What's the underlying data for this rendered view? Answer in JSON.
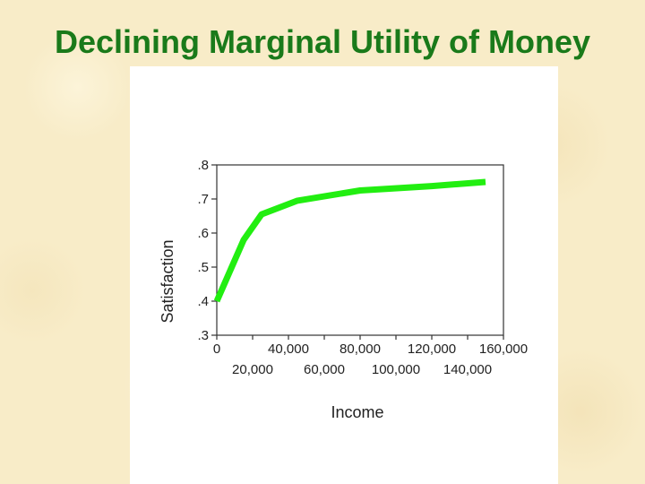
{
  "slide": {
    "title": "Declining Marginal Utility of Money"
  },
  "colors": {
    "title": "#1a7a1a",
    "line": "#22ee11",
    "background": "#f8ecc8",
    "panel": "#ffffff",
    "axis": "#333333"
  },
  "chart_data": {
    "type": "line",
    "title": "",
    "xlabel": "Income",
    "ylabel": "Satisfaction",
    "xlim": [
      0,
      160000
    ],
    "ylim": [
      0.3,
      0.8
    ],
    "x_ticks": [
      0,
      20000,
      40000,
      60000,
      80000,
      100000,
      120000,
      140000,
      160000
    ],
    "x_tick_labels": [
      "0",
      "20,000",
      "40,000",
      "60,000",
      "80,000",
      "100,000",
      "120,000",
      "140,000",
      "160,000"
    ],
    "y_ticks": [
      0.3,
      0.4,
      0.5,
      0.6,
      0.7,
      0.8
    ],
    "y_tick_labels": [
      ".3",
      ".4",
      ".5",
      ".6",
      ".7",
      ".8"
    ],
    "grid": false,
    "legend": "none",
    "series": [
      {
        "x": [
          0,
          15000,
          25000,
          45000,
          80000,
          120000,
          150000
        ],
        "y": [
          0.4,
          0.58,
          0.655,
          0.695,
          0.725,
          0.738,
          0.75
        ]
      }
    ]
  }
}
